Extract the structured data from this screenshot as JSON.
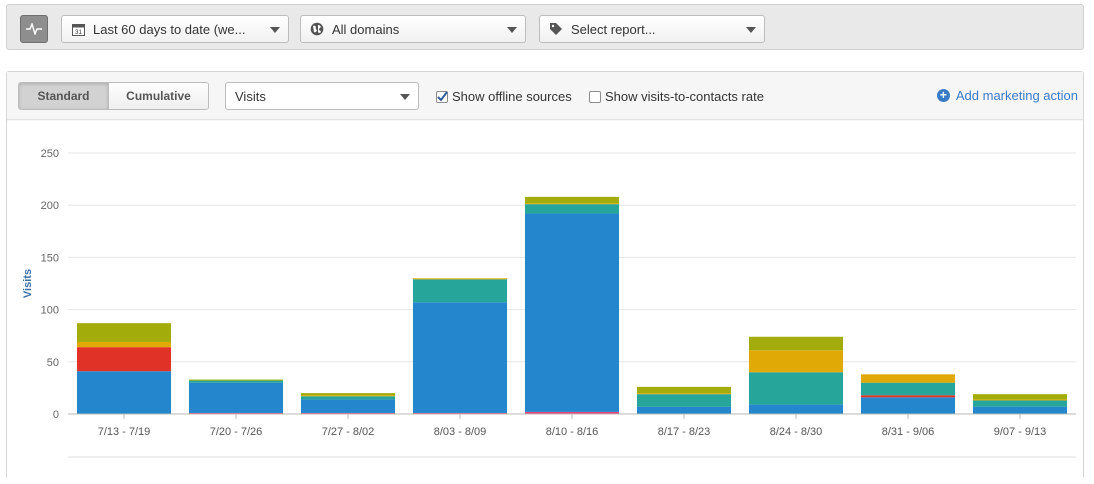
{
  "topbar": {
    "date_range": "Last 60 days to date (we...",
    "domains": "All domains",
    "report": "Select report..."
  },
  "toolbar": {
    "standard_label": "Standard",
    "cumulative_label": "Cumulative",
    "metric_value": "Visits",
    "show_offline_label": "Show offline sources",
    "show_offline_checked": true,
    "show_rate_label": "Show visits-to-contacts rate",
    "show_rate_checked": false,
    "add_action_label": "Add marketing action"
  },
  "colors": {
    "blue": "#2487cd",
    "teal": "#26a69a",
    "olive": "#a2ac0a",
    "gold": "#e1a906",
    "red": "#e03226",
    "pink": "#e8407a",
    "accent": "#3a7bc8"
  },
  "chart_data": {
    "type": "bar",
    "stacked": true,
    "ylabel": "Visits",
    "ylim": [
      0,
      250
    ],
    "yticks": [
      0,
      50,
      100,
      150,
      200,
      250
    ],
    "grid": true,
    "categories": [
      "7/13 - 7/19",
      "7/20 - 7/26",
      "7/27 - 8/02",
      "8/03 - 8/09",
      "8/10 - 8/16",
      "8/17 - 8/23",
      "8/24 - 8/30",
      "8/31 - 9/06",
      "9/07 - 9/13"
    ],
    "series": [
      {
        "color": "#e8407a",
        "values": [
          0,
          1,
          1,
          1,
          2,
          0,
          0,
          0,
          0
        ]
      },
      {
        "color": "#2487cd",
        "values": [
          41,
          29,
          13,
          106,
          190,
          7,
          9,
          16,
          7
        ]
      },
      {
        "color": "#e03226",
        "values": [
          23,
          0,
          0,
          0,
          0,
          0,
          0,
          2,
          0
        ]
      },
      {
        "color": "#26a69a",
        "values": [
          0,
          2,
          3,
          22,
          9,
          12,
          31,
          12,
          6
        ]
      },
      {
        "color": "#e1a906",
        "values": [
          5,
          0,
          1,
          1,
          1,
          1,
          21,
          8,
          1
        ]
      },
      {
        "color": "#a2ac0a",
        "values": [
          18,
          1,
          2,
          0,
          6,
          6,
          13,
          0,
          5
        ]
      }
    ]
  }
}
